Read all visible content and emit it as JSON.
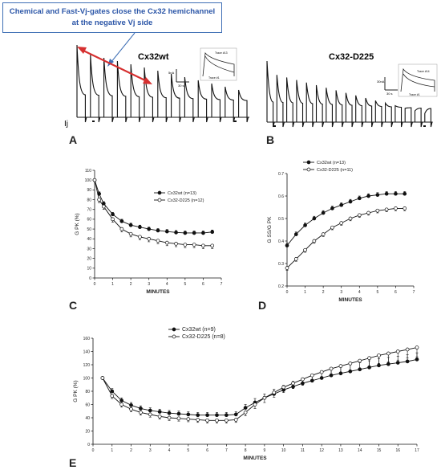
{
  "callout": {
    "line1": "Chemical and Fast-Vj-gates close the Cx32 hemichannel",
    "line2": "at the negative Vj side"
  },
  "panels": {
    "A": {
      "letter": "A",
      "title": "Cx32wt",
      "ylabel": "Ij",
      "scale_current": "5nA",
      "scale_time": "30 s",
      "trace_top": "Trace #13",
      "trace_bottom": "Trace #1"
    },
    "B": {
      "letter": "B",
      "title": "Cx32-D225",
      "scale_current": "30nA",
      "scale_time": "30 s",
      "trace_top": "Trace #14",
      "trace_bottom": "Trace #1"
    },
    "C": {
      "letter": "C"
    },
    "D": {
      "letter": "D"
    },
    "E": {
      "letter": "E"
    }
  },
  "colors": {
    "arrow": "#d63030",
    "callout_border": "#3f6fb5",
    "callout_text": "#2d57a8"
  },
  "chart_data": [
    {
      "id": "C",
      "type": "line",
      "xlabel": "MINUTES",
      "ylabel": "G PK (%)",
      "xlim": [
        0,
        7
      ],
      "ylim": [
        0,
        110
      ],
      "xticks": [
        0,
        1,
        2,
        3,
        4,
        5,
        6,
        7
      ],
      "yticks": [
        0,
        10,
        20,
        30,
        40,
        50,
        60,
        70,
        80,
        90,
        100,
        110
      ],
      "legend_position": "top-right",
      "series": [
        {
          "name": "Cx32wt (n=13)",
          "marker": "filled",
          "x": [
            0,
            0.25,
            0.5,
            1,
            1.5,
            2,
            2.5,
            3,
            3.5,
            4,
            4.5,
            5,
            5.5,
            6,
            6.5
          ],
          "y": [
            100,
            86,
            76,
            65,
            58,
            54,
            52,
            50,
            48.5,
            47.5,
            46.5,
            46,
            46,
            46,
            47
          ],
          "err": [
            0,
            2,
            2,
            2,
            2,
            2,
            2,
            2,
            2,
            2,
            2,
            2,
            2,
            2,
            2
          ]
        },
        {
          "name": "Cx32-D225 (n=12)",
          "marker": "open",
          "x": [
            0,
            0.25,
            0.5,
            1,
            1.5,
            2,
            2.5,
            3,
            3.5,
            4,
            4.5,
            5,
            5.5,
            6,
            6.5
          ],
          "y": [
            100,
            80,
            73,
            60,
            50,
            45,
            42,
            40,
            38,
            36,
            35,
            34,
            34,
            33,
            33
          ],
          "err": [
            0,
            3,
            3,
            3,
            3,
            3,
            3,
            3,
            3,
            3,
            3,
            3,
            3,
            3,
            3
          ]
        }
      ]
    },
    {
      "id": "D",
      "type": "line",
      "xlabel": "MINUTES",
      "ylabel": "G SS/G PK",
      "xlim": [
        0,
        7
      ],
      "ylim": [
        0.2,
        0.7
      ],
      "xticks": [
        0,
        1,
        2,
        3,
        4,
        5,
        6,
        7
      ],
      "yticks": [
        0.2,
        0.3,
        0.4,
        0.5,
        0.6,
        0.7
      ],
      "legend_position": "top-left",
      "series": [
        {
          "name": "Cx32wt (n=13)",
          "marker": "filled",
          "x": [
            0,
            0.5,
            1,
            1.5,
            2,
            2.5,
            3,
            3.5,
            4,
            4.5,
            5,
            5.5,
            6,
            6.5
          ],
          "y": [
            0.38,
            0.43,
            0.47,
            0.5,
            0.525,
            0.545,
            0.56,
            0.575,
            0.59,
            0.6,
            0.605,
            0.61,
            0.61,
            0.61
          ],
          "err": [
            0.01,
            0.01,
            0.01,
            0.01,
            0.01,
            0.01,
            0.01,
            0.01,
            0.01,
            0.01,
            0.01,
            0.01,
            0.01,
            0.01
          ]
        },
        {
          "name": "Cx32-D225 (n=11)",
          "marker": "open",
          "x": [
            0,
            0.5,
            1,
            1.5,
            2,
            2.5,
            3,
            3.5,
            4,
            4.5,
            5,
            5.5,
            6,
            6.5
          ],
          "y": [
            0.28,
            0.32,
            0.36,
            0.4,
            0.43,
            0.46,
            0.48,
            0.5,
            0.515,
            0.525,
            0.535,
            0.54,
            0.545,
            0.545
          ],
          "err": [
            0.01,
            0.01,
            0.01,
            0.01,
            0.01,
            0.01,
            0.01,
            0.01,
            0.01,
            0.01,
            0.01,
            0.01,
            0.01,
            0.01
          ]
        }
      ]
    },
    {
      "id": "E",
      "type": "line",
      "xlabel": "MINUTES",
      "ylabel": "G PK (%)",
      "xlim": [
        0,
        17
      ],
      "ylim": [
        0,
        160
      ],
      "xticks": [
        0,
        1,
        2,
        3,
        4,
        5,
        6,
        7,
        8,
        9,
        10,
        11,
        12,
        13,
        14,
        15,
        16,
        17
      ],
      "yticks": [
        0,
        20,
        40,
        60,
        80,
        100,
        120,
        140,
        160
      ],
      "legend_position": "top-center",
      "series": [
        {
          "name": "Cx32wt (n=9)",
          "marker": "filled",
          "x": [
            0.5,
            1,
            1.5,
            2,
            2.5,
            3,
            3.5,
            4,
            4.5,
            5,
            5.5,
            6,
            6.5,
            7,
            7.5,
            8,
            8.5,
            9,
            9.5,
            10,
            10.5,
            11,
            11.5,
            12,
            12.5,
            13,
            13.5,
            14,
            14.5,
            15,
            15.5,
            16,
            16.5,
            17
          ],
          "y": [
            100,
            80,
            66,
            59,
            54,
            51,
            49,
            47,
            46,
            45,
            44,
            44,
            44,
            44,
            45,
            55,
            63,
            70,
            76,
            82,
            87,
            92,
            96,
            100,
            104,
            107,
            110,
            113,
            116,
            119,
            121,
            123,
            125,
            128
          ],
          "err": [
            0,
            4,
            4,
            4,
            4,
            4,
            4,
            4,
            4,
            4,
            4,
            4,
            4,
            4,
            4,
            5,
            6,
            6,
            7,
            7,
            8,
            8,
            8,
            9,
            9,
            9,
            10,
            10,
            10,
            10,
            10,
            10,
            10,
            10
          ]
        },
        {
          "name": "Cx32-D225 (n=8)",
          "marker": "open",
          "x": [
            0.5,
            1,
            1.5,
            2,
            2.5,
            3,
            3.5,
            4,
            4.5,
            5,
            5.5,
            6,
            6.5,
            7,
            7.5,
            8,
            8.5,
            9,
            9.5,
            10,
            10.5,
            11,
            11.5,
            12,
            12.5,
            13,
            13.5,
            14,
            14.5,
            15,
            15.5,
            16,
            16.5,
            17
          ],
          "y": [
            100,
            73,
            60,
            53,
            48,
            45,
            42,
            40,
            39,
            38,
            37,
            36,
            36,
            36,
            37,
            48,
            60,
            70,
            78,
            86,
            92,
            98,
            104,
            109,
            114,
            118,
            122,
            126,
            130,
            134,
            137,
            140,
            143,
            146
          ],
          "err": [
            0,
            4,
            4,
            4,
            4,
            4,
            4,
            4,
            4,
            4,
            4,
            4,
            4,
            4,
            4,
            5,
            6,
            7,
            7,
            8,
            8,
            9,
            9,
            10,
            10,
            11,
            11,
            12,
            12,
            12,
            13,
            13,
            13,
            14
          ]
        }
      ]
    }
  ]
}
